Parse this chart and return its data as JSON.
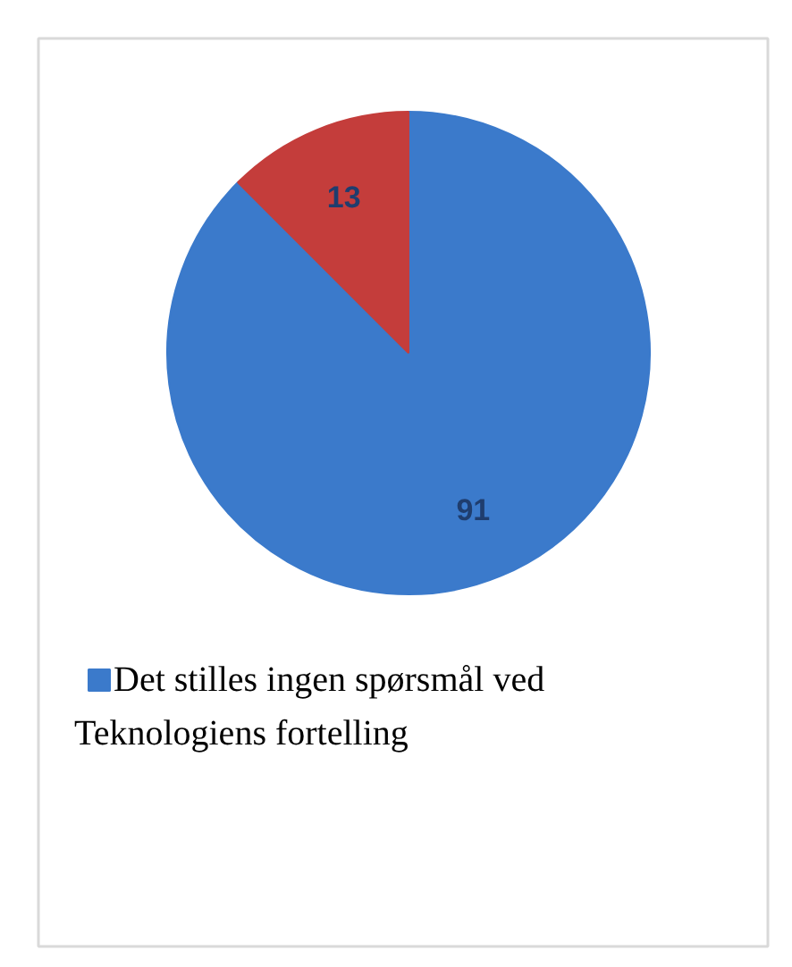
{
  "chart_data": {
    "type": "pie",
    "categories": [
      "Det stilles ingen spørsmål ved Teknologiens fortelling",
      null
    ],
    "values": [
      91,
      13
    ],
    "colors": [
      "#3b7acb",
      "#c43d3b"
    ],
    "data_labels": true,
    "legend": "bottom"
  }
}
